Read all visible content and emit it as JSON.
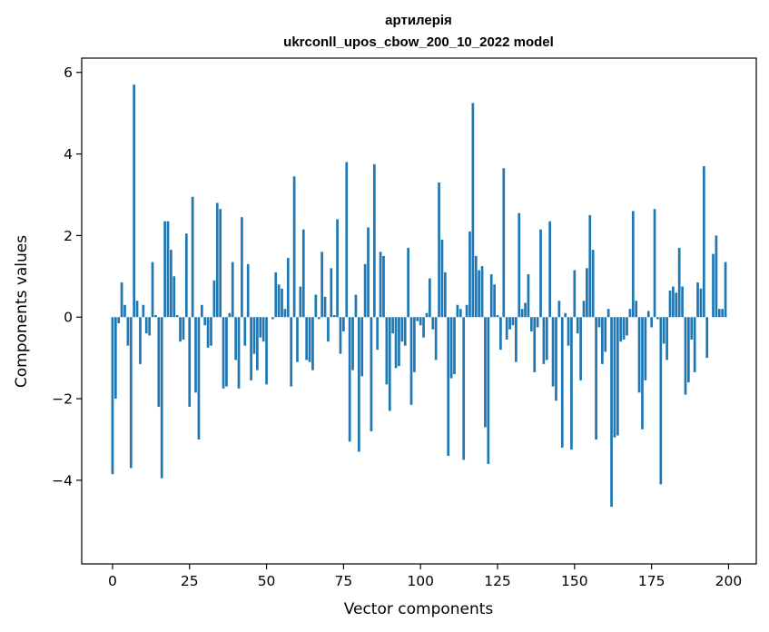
{
  "chart_data": {
    "type": "bar",
    "title_lines": [
      "артилерія",
      "ukrconll_upos_cbow_200_10_2022 model"
    ],
    "xlabel": "Vector components",
    "ylabel": "Components values",
    "xlim": [
      -10,
      209
    ],
    "ylim": [
      -6.05,
      6.35
    ],
    "x_ticks": [
      0,
      25,
      50,
      75,
      100,
      125,
      150,
      175,
      200
    ],
    "x_tick_labels": [
      "0",
      "25",
      "50",
      "75",
      "100",
      "125",
      "150",
      "175",
      "200"
    ],
    "y_ticks": [
      -4,
      -2,
      0,
      2,
      4,
      6
    ],
    "y_tick_labels": [
      "−4",
      "−2",
      "0",
      "2",
      "4",
      "6"
    ],
    "bar_color": "#1f77b4",
    "grid": false,
    "x": [
      0,
      1,
      2,
      3,
      4,
      5,
      6,
      7,
      8,
      9,
      10,
      11,
      12,
      13,
      14,
      15,
      16,
      17,
      18,
      19,
      20,
      21,
      22,
      23,
      24,
      25,
      26,
      27,
      28,
      29,
      30,
      31,
      32,
      33,
      34,
      35,
      36,
      37,
      38,
      39,
      40,
      41,
      42,
      43,
      44,
      45,
      46,
      47,
      48,
      49,
      50,
      51,
      52,
      53,
      54,
      55,
      56,
      57,
      58,
      59,
      60,
      61,
      62,
      63,
      64,
      65,
      66,
      67,
      68,
      69,
      70,
      71,
      72,
      73,
      74,
      75,
      76,
      77,
      78,
      79,
      80,
      81,
      82,
      83,
      84,
      85,
      86,
      87,
      88,
      89,
      90,
      91,
      92,
      93,
      94,
      95,
      96,
      97,
      98,
      99,
      100,
      101,
      102,
      103,
      104,
      105,
      106,
      107,
      108,
      109,
      110,
      111,
      112,
      113,
      114,
      115,
      116,
      117,
      118,
      119,
      120,
      121,
      122,
      123,
      124,
      125,
      126,
      127,
      128,
      129,
      130,
      131,
      132,
      133,
      134,
      135,
      136,
      137,
      138,
      139,
      140,
      141,
      142,
      143,
      144,
      145,
      146,
      147,
      148,
      149,
      150,
      151,
      152,
      153,
      154,
      155,
      156,
      157,
      158,
      159,
      160,
      161,
      162,
      163,
      164,
      165,
      166,
      167,
      168,
      169,
      170,
      171,
      172,
      173,
      174,
      175,
      176,
      177,
      178,
      179,
      180,
      181,
      182,
      183,
      184,
      185,
      186,
      187,
      188,
      189,
      190,
      191,
      192,
      193,
      194,
      195,
      196,
      197,
      198,
      199
    ],
    "values": [
      -3.85,
      -2.0,
      -0.15,
      0.85,
      0.3,
      -0.7,
      -3.7,
      5.7,
      0.4,
      -1.15,
      0.3,
      -0.4,
      -0.45,
      1.35,
      0.05,
      -2.2,
      -3.95,
      2.35,
      2.35,
      1.65,
      1.0,
      0.05,
      -0.6,
      -0.55,
      2.05,
      -2.2,
      2.95,
      -1.85,
      -3.0,
      0.3,
      -0.2,
      -0.75,
      -0.7,
      0.9,
      2.8,
      2.65,
      -1.75,
      -1.7,
      0.1,
      1.35,
      -1.05,
      -1.75,
      2.45,
      -0.7,
      1.3,
      -1.55,
      -0.9,
      -1.3,
      -0.5,
      -0.6,
      -1.65,
      0.0,
      -0.05,
      1.1,
      0.8,
      0.7,
      0.2,
      1.45,
      -1.7,
      3.45,
      -1.1,
      0.75,
      2.15,
      -1.05,
      -1.1,
      -1.3,
      0.55,
      -0.05,
      1.6,
      0.5,
      -0.6,
      1.2,
      0.05,
      2.4,
      -0.9,
      -0.35,
      3.8,
      -3.05,
      -1.3,
      0.55,
      -3.3,
      -1.45,
      1.3,
      2.2,
      -2.8,
      3.75,
      -0.8,
      1.6,
      1.5,
      -1.65,
      -2.3,
      -0.4,
      -1.25,
      -1.2,
      -0.6,
      -0.7,
      1.7,
      -2.15,
      -1.35,
      -0.1,
      -0.2,
      -0.5,
      0.1,
      0.95,
      -0.3,
      -1.05,
      3.3,
      1.9,
      1.1,
      -3.4,
      -1.5,
      -1.4,
      0.3,
      0.2,
      -3.5,
      0.3,
      2.1,
      5.25,
      1.5,
      1.15,
      1.25,
      -2.7,
      -3.6,
      1.05,
      0.8,
      0.05,
      -0.8,
      3.65,
      -0.55,
      -0.3,
      -0.2,
      -1.1,
      2.55,
      0.2,
      0.35,
      1.05,
      -0.35,
      -1.35,
      -0.25,
      2.15,
      -1.15,
      -1.05,
      2.35,
      -1.7,
      -2.05,
      0.4,
      -3.2,
      0.1,
      -0.7,
      -3.25,
      1.15,
      -0.4,
      -1.55,
      0.4,
      1.2,
      2.5,
      1.65,
      -3.0,
      -0.25,
      -1.15,
      -0.85,
      0.2,
      -4.65,
      -2.95,
      -2.9,
      -0.6,
      -0.55,
      -0.45,
      0.2,
      2.6,
      0.4,
      -1.85,
      -2.75,
      -1.55,
      0.15,
      -0.25,
      2.65,
      -0.05,
      -4.1,
      -0.65,
      -1.05,
      0.65,
      0.75,
      0.6,
      1.7,
      0.75,
      -1.9,
      -1.6,
      -0.55,
      -1.35,
      0.85,
      0.7,
      3.7,
      -1.0,
      0.0,
      1.55,
      2.0,
      0.2,
      0.2,
      1.35
    ]
  }
}
